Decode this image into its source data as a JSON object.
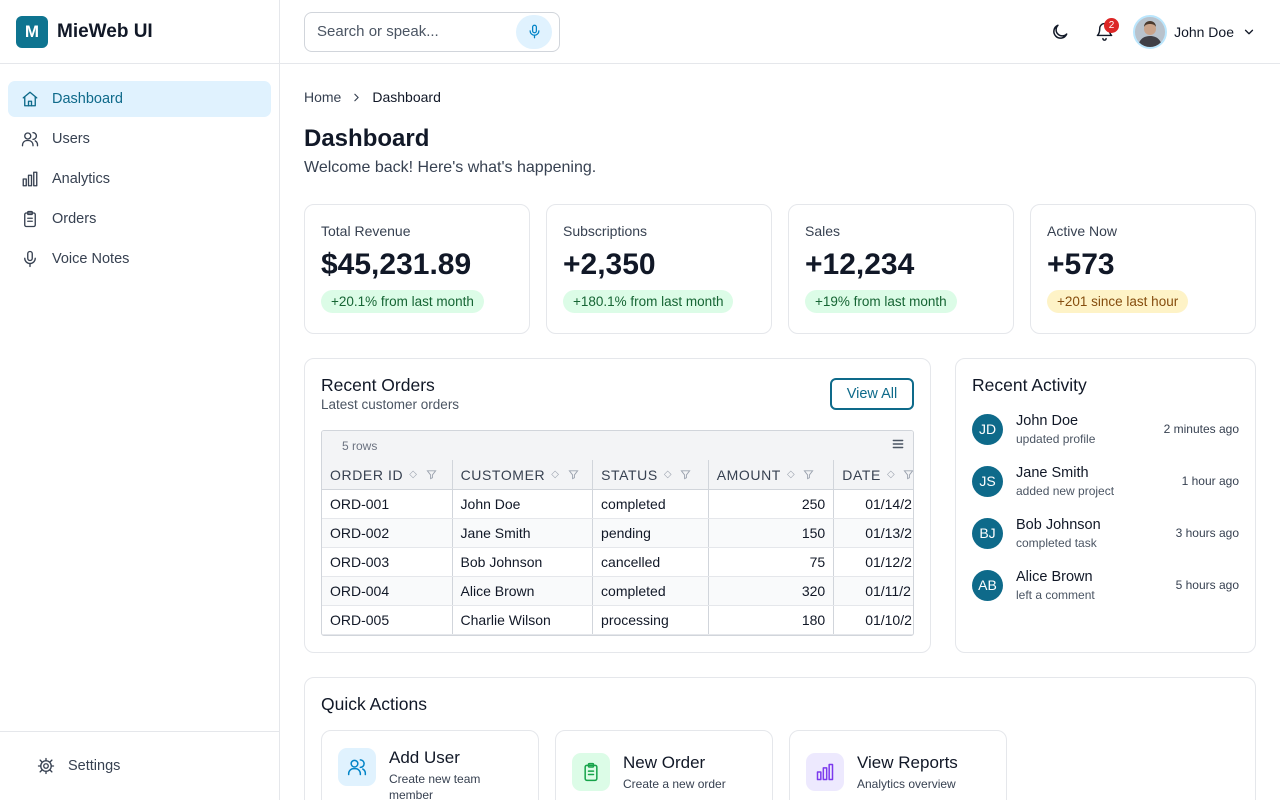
{
  "brand": {
    "logo_letter": "M",
    "name": "MieWeb UI",
    "accent": "#0e7490"
  },
  "sidebar": {
    "items": [
      {
        "label": "Dashboard",
        "icon": "home-icon",
        "active": true
      },
      {
        "label": "Users",
        "icon": "users-icon",
        "active": false
      },
      {
        "label": "Analytics",
        "icon": "bar-chart-icon",
        "active": false
      },
      {
        "label": "Orders",
        "icon": "clipboard-icon",
        "active": false
      },
      {
        "label": "Voice Notes",
        "icon": "mic-icon",
        "active": false
      }
    ],
    "footer": {
      "label": "Settings",
      "icon": "gear-icon"
    }
  },
  "header": {
    "search_placeholder": "Search or speak...",
    "notification_count": "2",
    "user_name": "John Doe"
  },
  "breadcrumb": {
    "home": "Home",
    "current": "Dashboard"
  },
  "page": {
    "title": "Dashboard",
    "subtitle": "Welcome back! Here's what's happening."
  },
  "stats": [
    {
      "label": "Total Revenue",
      "value": "$45,231.89",
      "change": "+20.1% from last month",
      "tone": "green"
    },
    {
      "label": "Subscriptions",
      "value": "+2,350",
      "change": "+180.1% from last month",
      "tone": "green"
    },
    {
      "label": "Sales",
      "value": "+12,234",
      "change": "+19% from last month",
      "tone": "green"
    },
    {
      "label": "Active Now",
      "value": "+573",
      "change": "+201 since last hour",
      "tone": "yellow"
    }
  ],
  "orders": {
    "title": "Recent Orders",
    "subtitle": "Latest customer orders",
    "view_all": "View All",
    "row_count": "5 rows",
    "columns": [
      "ORDER ID",
      "CUSTOMER",
      "STATUS",
      "AMOUNT",
      "DATE"
    ],
    "rows": [
      [
        "ORD-001",
        "John Doe",
        "completed",
        "250",
        "01/14/2"
      ],
      [
        "ORD-002",
        "Jane Smith",
        "pending",
        "150",
        "01/13/2"
      ],
      [
        "ORD-003",
        "Bob Johnson",
        "cancelled",
        "75",
        "01/12/2"
      ],
      [
        "ORD-004",
        "Alice Brown",
        "completed",
        "320",
        "01/11/2"
      ],
      [
        "ORD-005",
        "Charlie Wilson",
        "processing",
        "180",
        "01/10/2"
      ]
    ]
  },
  "activity": {
    "title": "Recent Activity",
    "items": [
      {
        "initials": "JD",
        "name": "John Doe",
        "action": "updated profile",
        "time": "2 minutes ago"
      },
      {
        "initials": "JS",
        "name": "Jane Smith",
        "action": "added new project",
        "time": "1 hour ago"
      },
      {
        "initials": "BJ",
        "name": "Bob Johnson",
        "action": "completed task",
        "time": "3 hours ago"
      },
      {
        "initials": "AB",
        "name": "Alice Brown",
        "action": "left a comment",
        "time": "5 hours ago"
      }
    ]
  },
  "quick_actions": {
    "title": "Quick Actions",
    "items": [
      {
        "title": "Add User",
        "desc": "Create new team member",
        "icon": "users-icon",
        "color": "#0284c7",
        "bg": "#e0f2fe"
      },
      {
        "title": "New Order",
        "desc": "Create a new order",
        "icon": "clipboard-icon",
        "color": "#16a34a",
        "bg": "#dcfce7"
      },
      {
        "title": "View Reports",
        "desc": "Analytics overview",
        "icon": "bar-chart-icon",
        "color": "#7c3aed",
        "bg": "#ede9fe"
      }
    ]
  }
}
